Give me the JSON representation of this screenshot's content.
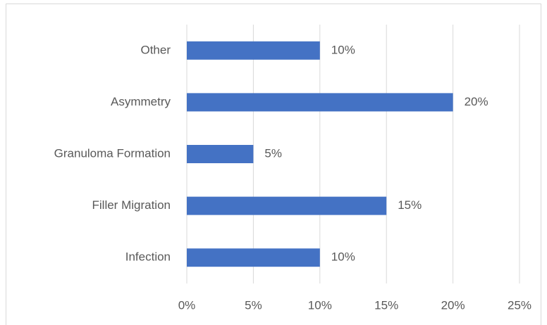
{
  "chart_data": {
    "type": "hbar",
    "categories": [
      "Other",
      "Asymmetry",
      "Granuloma Formation",
      "Filler Migration",
      "Infection"
    ],
    "values": [
      10,
      20,
      5,
      15,
      10
    ],
    "value_labels": [
      "10%",
      "20%",
      "5%",
      "15%",
      "10%"
    ],
    "color": "#4472c4",
    "xlim": [
      0,
      25
    ],
    "xticks": [
      {
        "value": 0,
        "label": "0%"
      },
      {
        "value": 5,
        "label": "5%"
      },
      {
        "value": 10,
        "label": "10%"
      },
      {
        "value": 15,
        "label": "15%"
      },
      {
        "value": 20,
        "label": "20%"
      },
      {
        "value": 25,
        "label": "25%"
      }
    ],
    "grid": true
  }
}
